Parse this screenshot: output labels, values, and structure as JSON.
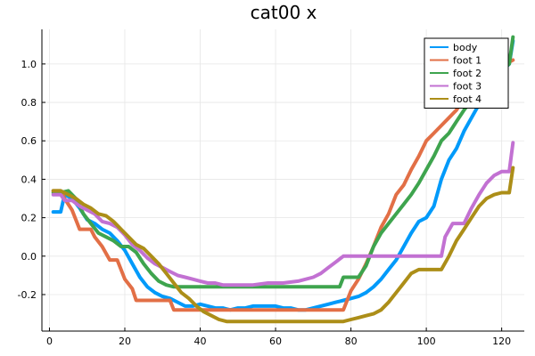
{
  "chart_data": {
    "type": "line",
    "title": "cat00 x",
    "xlabel": "",
    "ylabel": "",
    "xlim": [
      -2,
      126
    ],
    "ylim": [
      -0.39,
      1.18
    ],
    "xticks": [
      0,
      20,
      40,
      60,
      80,
      100,
      120
    ],
    "yticks": [
      -0.2,
      0.0,
      0.2,
      0.4,
      0.6,
      0.8,
      1.0
    ],
    "ytick_labels": [
      "-0.2",
      "0.0",
      "0.2",
      "0.4",
      "0.6",
      "0.8",
      "1.0"
    ],
    "grid": true,
    "legend_position": "top-right",
    "series": [
      {
        "name": "body",
        "color": "#009AFA",
        "points": [
          [
            1,
            0.23
          ],
          [
            3,
            0.23
          ],
          [
            4,
            0.32
          ],
          [
            6,
            0.3
          ],
          [
            8,
            0.25
          ],
          [
            10,
            0.19
          ],
          [
            12,
            0.17
          ],
          [
            14,
            0.14
          ],
          [
            16,
            0.12
          ],
          [
            18,
            0.08
          ],
          [
            20,
            0.03
          ],
          [
            22,
            -0.04
          ],
          [
            24,
            -0.11
          ],
          [
            26,
            -0.16
          ],
          [
            28,
            -0.19
          ],
          [
            30,
            -0.21
          ],
          [
            32,
            -0.22
          ],
          [
            34,
            -0.24
          ],
          [
            36,
            -0.26
          ],
          [
            38,
            -0.26
          ],
          [
            40,
            -0.25
          ],
          [
            42,
            -0.26
          ],
          [
            44,
            -0.27
          ],
          [
            46,
            -0.27
          ],
          [
            48,
            -0.28
          ],
          [
            50,
            -0.27
          ],
          [
            52,
            -0.27
          ],
          [
            54,
            -0.26
          ],
          [
            56,
            -0.26
          ],
          [
            58,
            -0.26
          ],
          [
            60,
            -0.26
          ],
          [
            62,
            -0.27
          ],
          [
            64,
            -0.27
          ],
          [
            66,
            -0.28
          ],
          [
            68,
            -0.28
          ],
          [
            70,
            -0.27
          ],
          [
            72,
            -0.26
          ],
          [
            74,
            -0.25
          ],
          [
            76,
            -0.24
          ],
          [
            78,
            -0.23
          ],
          [
            80,
            -0.22
          ],
          [
            82,
            -0.21
          ],
          [
            84,
            -0.19
          ],
          [
            86,
            -0.16
          ],
          [
            88,
            -0.12
          ],
          [
            90,
            -0.07
          ],
          [
            92,
            -0.02
          ],
          [
            94,
            0.05
          ],
          [
            96,
            0.12
          ],
          [
            98,
            0.18
          ],
          [
            100,
            0.2
          ],
          [
            102,
            0.26
          ],
          [
            104,
            0.4
          ],
          [
            106,
            0.5
          ],
          [
            108,
            0.56
          ],
          [
            110,
            0.65
          ],
          [
            112,
            0.72
          ],
          [
            114,
            0.79
          ],
          [
            116,
            0.84
          ],
          [
            118,
            0.9
          ],
          [
            120,
            0.96
          ],
          [
            122,
            1.0
          ],
          [
            123,
            1.12
          ]
        ]
      },
      {
        "name": "foot 1",
        "color": "#E26F46",
        "points": [
          [
            1,
            0.34
          ],
          [
            3,
            0.34
          ],
          [
            4,
            0.3
          ],
          [
            6,
            0.24
          ],
          [
            8,
            0.14
          ],
          [
            11,
            0.14
          ],
          [
            12,
            0.1
          ],
          [
            14,
            0.05
          ],
          [
            16,
            -0.02
          ],
          [
            18,
            -0.02
          ],
          [
            20,
            -0.12
          ],
          [
            22,
            -0.17
          ],
          [
            23,
            -0.23
          ],
          [
            32,
            -0.23
          ],
          [
            33,
            -0.28
          ],
          [
            78,
            -0.28
          ],
          [
            80,
            -0.18
          ],
          [
            82,
            -0.12
          ],
          [
            84,
            -0.04
          ],
          [
            86,
            0.05
          ],
          [
            88,
            0.15
          ],
          [
            90,
            0.22
          ],
          [
            92,
            0.32
          ],
          [
            94,
            0.37
          ],
          [
            96,
            0.45
          ],
          [
            98,
            0.52
          ],
          [
            100,
            0.6
          ],
          [
            102,
            0.64
          ],
          [
            104,
            0.68
          ],
          [
            106,
            0.72
          ],
          [
            108,
            0.76
          ],
          [
            110,
            0.82
          ],
          [
            112,
            0.87
          ],
          [
            114,
            0.9
          ],
          [
            116,
            0.94
          ],
          [
            118,
            0.97
          ],
          [
            120,
            0.99
          ],
          [
            122,
            1.01
          ],
          [
            123,
            1.02
          ]
        ]
      },
      {
        "name": "foot 2",
        "color": "#3EA44E",
        "points": [
          [
            1,
            0.33
          ],
          [
            3,
            0.33
          ],
          [
            5,
            0.34
          ],
          [
            7,
            0.3
          ],
          [
            9,
            0.22
          ],
          [
            11,
            0.17
          ],
          [
            13,
            0.12
          ],
          [
            15,
            0.1
          ],
          [
            17,
            0.08
          ],
          [
            19,
            0.05
          ],
          [
            21,
            0.05
          ],
          [
            23,
            0.02
          ],
          [
            25,
            -0.04
          ],
          [
            27,
            -0.09
          ],
          [
            29,
            -0.13
          ],
          [
            31,
            -0.15
          ],
          [
            33,
            -0.16
          ],
          [
            77,
            -0.16
          ],
          [
            78,
            -0.11
          ],
          [
            82,
            -0.11
          ],
          [
            84,
            -0.05
          ],
          [
            86,
            0.05
          ],
          [
            88,
            0.12
          ],
          [
            90,
            0.17
          ],
          [
            92,
            0.22
          ],
          [
            94,
            0.27
          ],
          [
            96,
            0.32
          ],
          [
            98,
            0.38
          ],
          [
            100,
            0.45
          ],
          [
            102,
            0.52
          ],
          [
            104,
            0.6
          ],
          [
            106,
            0.64
          ],
          [
            108,
            0.7
          ],
          [
            110,
            0.76
          ],
          [
            112,
            0.81
          ],
          [
            114,
            0.85
          ],
          [
            116,
            0.9
          ],
          [
            118,
            0.94
          ],
          [
            120,
            0.97
          ],
          [
            122,
            1.0
          ],
          [
            123,
            1.14
          ]
        ]
      },
      {
        "name": "foot 3",
        "color": "#C271D2",
        "points": [
          [
            1,
            0.32
          ],
          [
            3,
            0.32
          ],
          [
            4,
            0.29
          ],
          [
            6,
            0.29
          ],
          [
            8,
            0.26
          ],
          [
            10,
            0.24
          ],
          [
            12,
            0.22
          ],
          [
            14,
            0.18
          ],
          [
            16,
            0.17
          ],
          [
            18,
            0.15
          ],
          [
            20,
            0.11
          ],
          [
            22,
            0.06
          ],
          [
            24,
            0.03
          ],
          [
            26,
            -0.01
          ],
          [
            28,
            -0.04
          ],
          [
            30,
            -0.06
          ],
          [
            32,
            -0.08
          ],
          [
            34,
            -0.1
          ],
          [
            36,
            -0.11
          ],
          [
            38,
            -0.12
          ],
          [
            40,
            -0.13
          ],
          [
            42,
            -0.14
          ],
          [
            44,
            -0.14
          ],
          [
            46,
            -0.15
          ],
          [
            50,
            -0.15
          ],
          [
            54,
            -0.15
          ],
          [
            58,
            -0.14
          ],
          [
            62,
            -0.14
          ],
          [
            66,
            -0.13
          ],
          [
            70,
            -0.11
          ],
          [
            72,
            -0.09
          ],
          [
            74,
            -0.06
          ],
          [
            76,
            -0.03
          ],
          [
            78,
            0.0
          ],
          [
            104,
            0.0
          ],
          [
            105,
            0.1
          ],
          [
            107,
            0.17
          ],
          [
            110,
            0.17
          ],
          [
            112,
            0.25
          ],
          [
            114,
            0.32
          ],
          [
            116,
            0.38
          ],
          [
            118,
            0.42
          ],
          [
            120,
            0.44
          ],
          [
            122,
            0.44
          ],
          [
            123,
            0.59
          ]
        ]
      },
      {
        "name": "foot 4",
        "color": "#AC8E18",
        "points": [
          [
            1,
            0.34
          ],
          [
            3,
            0.34
          ],
          [
            5,
            0.32
          ],
          [
            7,
            0.3
          ],
          [
            9,
            0.27
          ],
          [
            11,
            0.25
          ],
          [
            13,
            0.22
          ],
          [
            15,
            0.21
          ],
          [
            17,
            0.18
          ],
          [
            19,
            0.14
          ],
          [
            21,
            0.1
          ],
          [
            23,
            0.06
          ],
          [
            25,
            0.04
          ],
          [
            27,
            0.0
          ],
          [
            29,
            -0.04
          ],
          [
            31,
            -0.09
          ],
          [
            33,
            -0.14
          ],
          [
            35,
            -0.19
          ],
          [
            37,
            -0.22
          ],
          [
            39,
            -0.26
          ],
          [
            41,
            -0.29
          ],
          [
            43,
            -0.31
          ],
          [
            45,
            -0.33
          ],
          [
            47,
            -0.34
          ],
          [
            78,
            -0.34
          ],
          [
            80,
            -0.33
          ],
          [
            82,
            -0.32
          ],
          [
            84,
            -0.31
          ],
          [
            86,
            -0.3
          ],
          [
            88,
            -0.28
          ],
          [
            90,
            -0.24
          ],
          [
            92,
            -0.19
          ],
          [
            94,
            -0.14
          ],
          [
            96,
            -0.09
          ],
          [
            98,
            -0.07
          ],
          [
            100,
            -0.07
          ],
          [
            102,
            -0.07
          ],
          [
            104,
            -0.07
          ],
          [
            106,
            0.0
          ],
          [
            108,
            0.08
          ],
          [
            110,
            0.14
          ],
          [
            112,
            0.2
          ],
          [
            114,
            0.26
          ],
          [
            116,
            0.3
          ],
          [
            118,
            0.32
          ],
          [
            120,
            0.33
          ],
          [
            122,
            0.33
          ],
          [
            123,
            0.46
          ]
        ]
      }
    ]
  }
}
